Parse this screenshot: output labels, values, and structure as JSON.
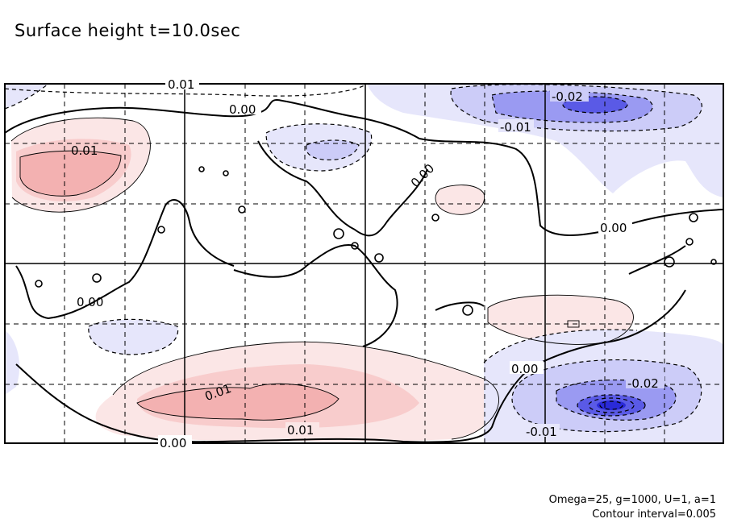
{
  "title": "Surface height t=10.0sec",
  "contour_labels": {
    "top_edge": "0.01",
    "upper_zero": "0.00",
    "upper_left_pos": "0.01",
    "upper_mid_zero": "0.00",
    "upper_right_neg": "-0.02",
    "upper_right_neg2": "-0.01",
    "right_zero": "0.00",
    "left_zero": "0.00",
    "lower_pos": "0.01",
    "lower_pos2": "0.01",
    "lower_right_zero": "0.00",
    "lower_right_neg": "-0.02",
    "lower_right_neg2": "-0.01",
    "bottom_zero": "0.00"
  },
  "footer": {
    "params": "Omega=25, g=1000, U=1, a=1",
    "interval": "Contour interval=0.005"
  },
  "colors": {
    "positive_light": "#fbe6e6",
    "positive_mid": "#f8cccc",
    "positive_strong": "#f3b1b1",
    "negative_light": "#e6e6fb",
    "negative_mid": "#ccccf8",
    "negative_strong": "#8080f0",
    "negative_core": "#4040e0"
  }
}
